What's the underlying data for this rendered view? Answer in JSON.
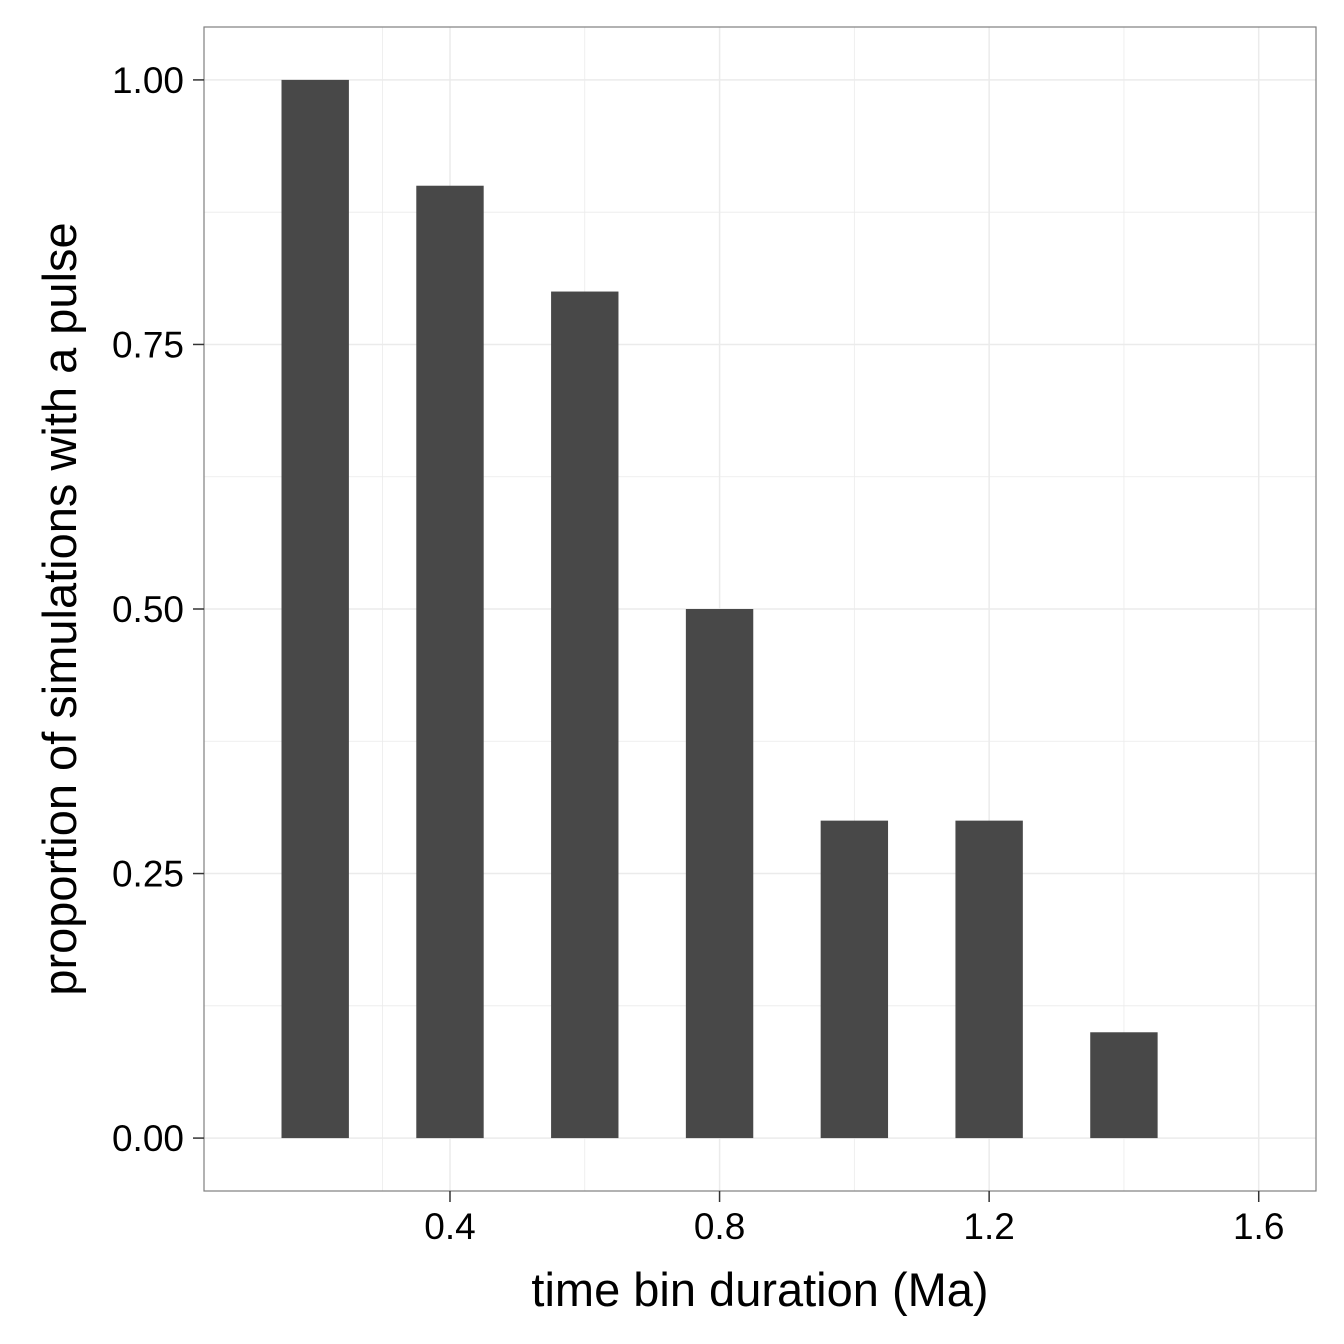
{
  "chart_data": {
    "type": "bar",
    "x": [
      0.2,
      0.4,
      0.6,
      0.8,
      1.0,
      1.2,
      1.4,
      1.6
    ],
    "values": [
      1.0,
      0.9,
      0.8,
      0.5,
      0.3,
      0.3,
      0.1,
      0.0
    ],
    "bar_width": 0.1,
    "xlim": [
      0.035,
      1.685
    ],
    "ylim": [
      -0.05,
      1.05
    ],
    "xticks": [
      0.4,
      0.8,
      1.2,
      1.6
    ],
    "xtick_labels": [
      "0.4",
      "0.8",
      "1.2",
      "1.6"
    ],
    "yticks": [
      0.0,
      0.25,
      0.5,
      0.75,
      1.0
    ],
    "ytick_labels": [
      "0.00",
      "0.25",
      "0.50",
      "0.75",
      "1.00"
    ],
    "xlabel": "time bin duration (Ma)",
    "ylabel": "proportion of simulations with a pulse",
    "grid": true,
    "colors": {
      "bar": "#484848",
      "grid": "#ebebeb",
      "panel_border": "#7f7f7f",
      "tick": "#333333"
    }
  }
}
